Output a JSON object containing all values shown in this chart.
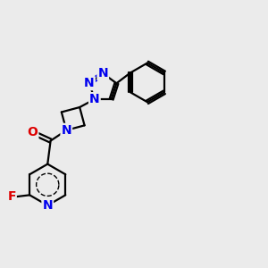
{
  "background_color": "#ebebeb",
  "bond_color": "#000000",
  "bond_width": 1.6,
  "blue": "#0000ee",
  "red": "#dd0000",
  "figsize": [
    3.0,
    3.0
  ],
  "dpi": 100,
  "xlim": [
    -1.2,
    5.8
  ],
  "ylim": [
    -3.2,
    2.8
  ]
}
